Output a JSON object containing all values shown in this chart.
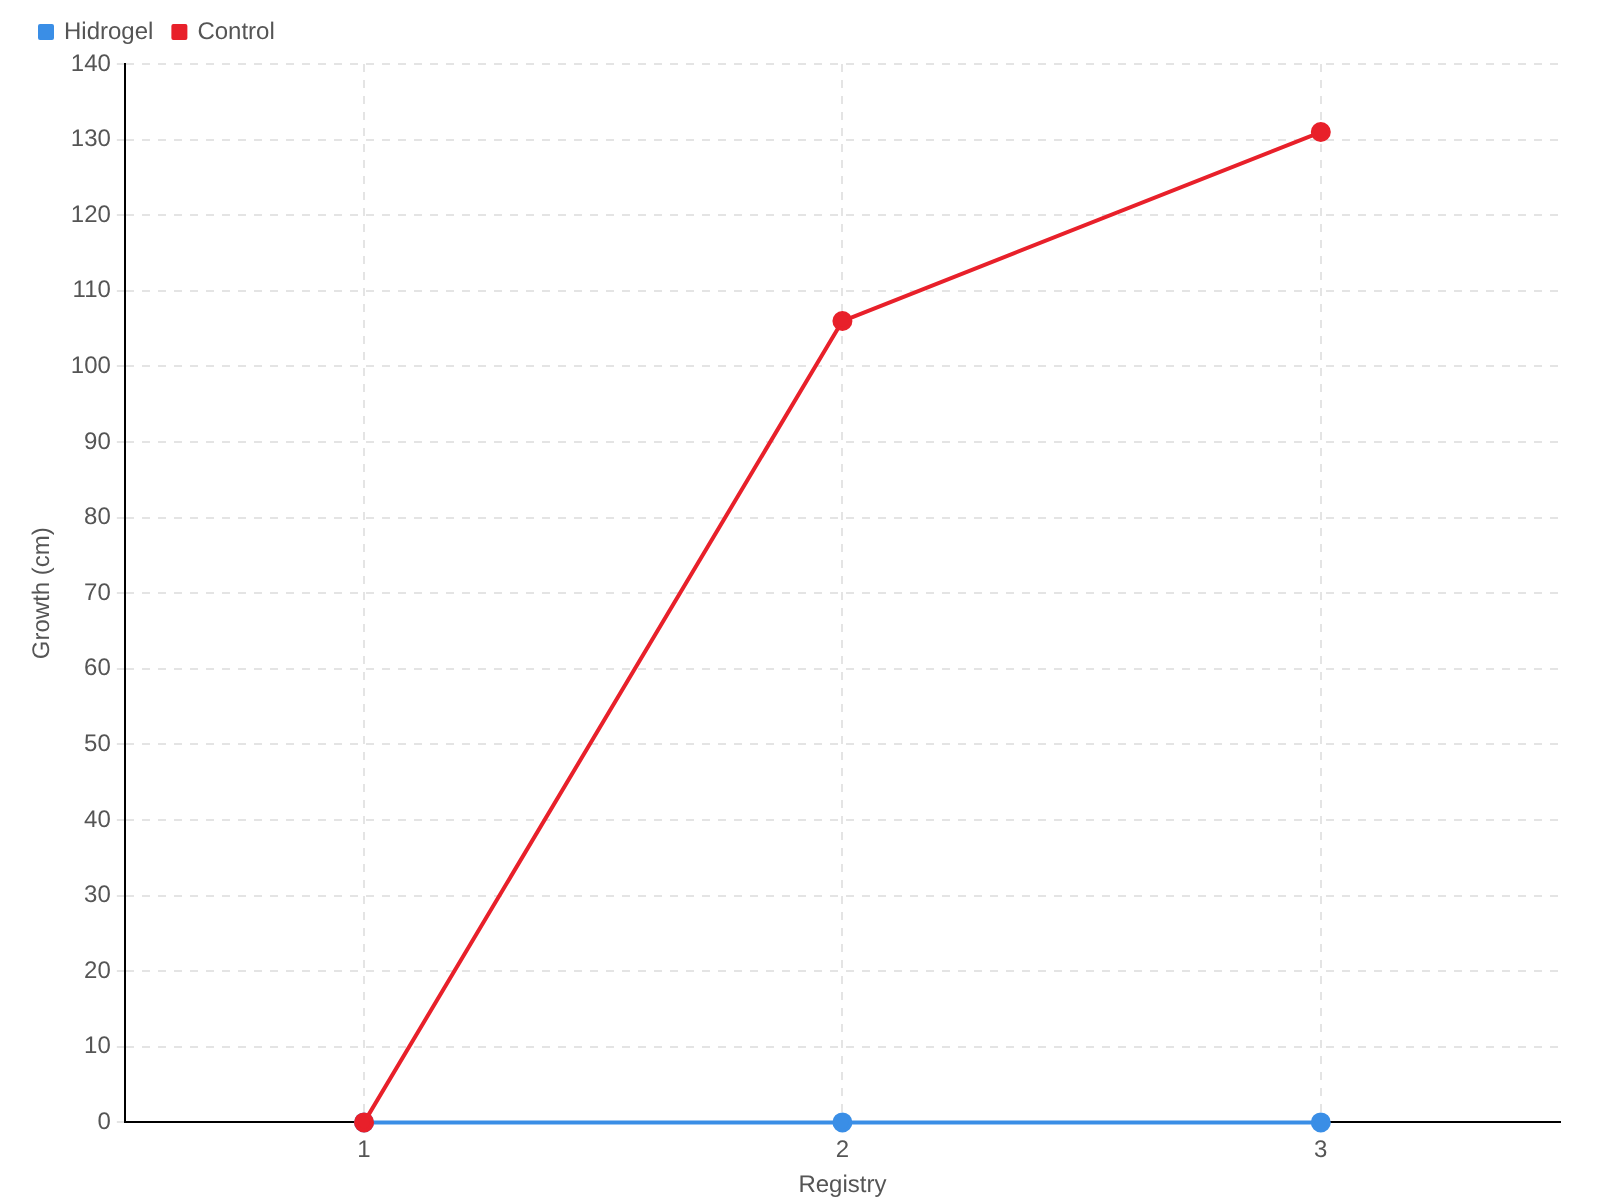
{
  "chart_data": {
    "type": "line",
    "xlabel": "Registry",
    "ylabel": "Growth (cm)",
    "x": [
      1,
      2,
      3
    ],
    "xlim": [
      0.5,
      3.5
    ],
    "xticks": [
      1,
      2,
      3
    ],
    "ylim": [
      0,
      140
    ],
    "yticks": [
      0,
      10,
      20,
      30,
      40,
      50,
      60,
      70,
      80,
      90,
      100,
      110,
      120,
      130,
      140
    ],
    "series": [
      {
        "name": "Hidrogel",
        "color": "#3a8ee6",
        "values": [
          0,
          0,
          0
        ]
      },
      {
        "name": "Control",
        "color": "#e8202a",
        "values": [
          0,
          106,
          131
        ]
      }
    ],
    "grid": true,
    "legend": "top left",
    "marker": "circle",
    "line_style": "solid"
  }
}
